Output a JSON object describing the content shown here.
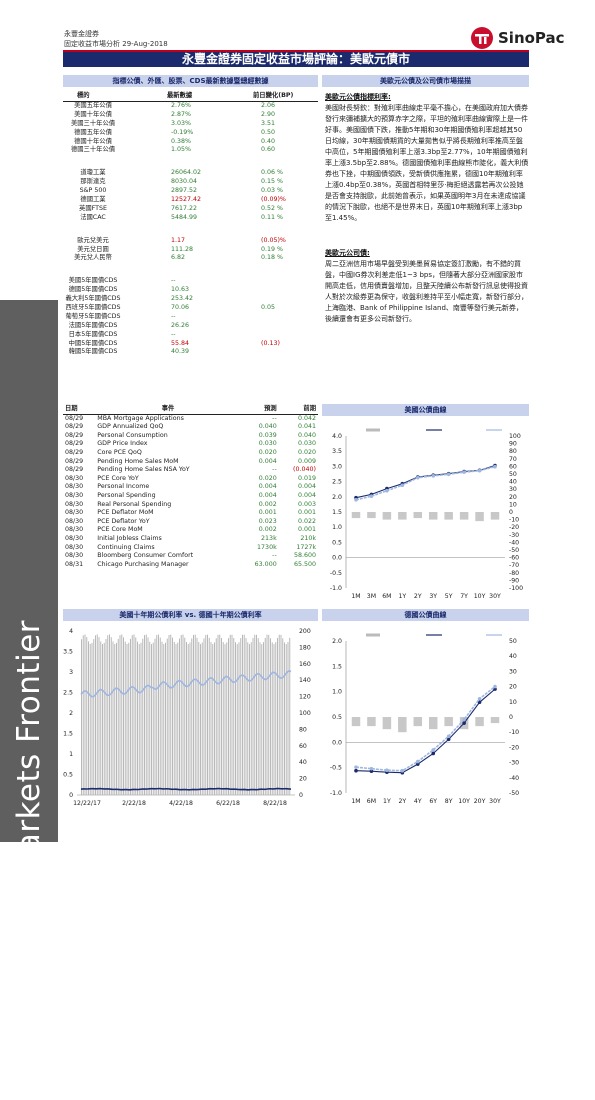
{
  "header": {
    "company": "永豐金證券",
    "subtitle": "固定收益市場分析",
    "date": "29-Aug-2018",
    "logo_text": "SinoPac",
    "title": "永豐金證券固定收益市場評論：美歐元債市"
  },
  "left_section": {
    "title": "指標公債、外匯、股票、CDS最新數據暨總經數據",
    "col_name": "標的",
    "col_latest": "最新數據",
    "col_change": "前日變化(BP)",
    "bonds": [
      {
        "name": "美國五年公債",
        "value": "2.76%",
        "change": "2.06",
        "color": "g"
      },
      {
        "name": "美國十年公債",
        "value": "2.87%",
        "change": "2.90",
        "color": "g"
      },
      {
        "name": "美國三十年公債",
        "value": "3.03%",
        "change": "3.51",
        "color": "g"
      },
      {
        "name": "德國五年公債",
        "value": "-0.19%",
        "change": "0.50",
        "color": "g"
      },
      {
        "name": "德國十年公債",
        "value": "0.38%",
        "change": "0.40",
        "color": "g"
      },
      {
        "name": "德國三十年公債",
        "value": "1.05%",
        "change": "0.60",
        "color": "g"
      }
    ],
    "stocks": [
      {
        "name": "道瓊工業",
        "value": "26064.02",
        "change": "0.06 %",
        "color": "g"
      },
      {
        "name": "那斯達克",
        "value": "8030.04",
        "change": "0.15 %",
        "color": "g"
      },
      {
        "name": "S&P 500",
        "value": "2897.52",
        "change": "0.03 %",
        "color": "g"
      },
      {
        "name": "德國工業",
        "value": "12527.42",
        "change": "(0.09)%",
        "color": "r"
      },
      {
        "name": "英國FTSE",
        "value": "7617.22",
        "change": "0.52 %",
        "color": "g"
      },
      {
        "name": "法國CAC",
        "value": "5484.99",
        "change": "0.11 %",
        "color": "g"
      }
    ],
    "fx": [
      {
        "name": "歐元兌美元",
        "value": "1.17",
        "change": "(0.05)%",
        "color": "r"
      },
      {
        "name": "美元兌日圓",
        "value": "111.28",
        "change": "0.19 %",
        "color": "g"
      },
      {
        "name": "美元兌人民幣",
        "value": "6.82",
        "change": "0.18 %",
        "color": "g"
      }
    ],
    "cds": [
      {
        "name": "美國5年國債CDS",
        "value": "--",
        "change": "",
        "color": "g"
      },
      {
        "name": "德國5年國債CDS",
        "value": "10.63",
        "change": "",
        "color": "g"
      },
      {
        "name": "義大利5年國債CDS",
        "value": "253.42",
        "change": "",
        "color": "g"
      },
      {
        "name": "西班牙5年國債CDS",
        "value": "70.06",
        "change": "0.05",
        "color": "g"
      },
      {
        "name": "葡萄牙5年國債CDS",
        "value": "--",
        "change": "",
        "color": "g"
      },
      {
        "name": "法國5年國債CDS",
        "value": "26.26",
        "change": "",
        "color": "g"
      },
      {
        "name": "日本5年國債CDS",
        "value": "--",
        "change": "",
        "color": "g"
      },
      {
        "name": "中國5年國債CDS",
        "value": "55.84",
        "change": "(0.13)",
        "color": "r"
      },
      {
        "name": "韓國5年國債CDS",
        "value": "40.39",
        "change": "",
        "color": "g"
      }
    ]
  },
  "right_section": {
    "title": "美歐元公債及公司債市場描描",
    "us_heading": "美歐元公債指標利率:",
    "us_text": "美國財長努欽：對殖利率曲線走平毫不擔心，在美國政府加大債券發行來彌補擴大的預算赤字之際，平坦的殖利率曲線實際上是一件好事。美國國債下跌，推動5年期和30年期國債殖利率超越其50日均線，30年期國債期貨的大量拋售似乎將長期殖利率推高至盤中高位，5年期國債殖利率上漲3.3bp至2.77%，10年期國債殖利率上漲3.5bp至2.88%。德國國債殖利率曲線熊市陡化，義大利債券也下挫，中期國債領跌，受新債供應拖累，德國10年期殖利率上漲0.4bp至0.38%，英國首相特里莎·梅拒絕透露若再次公投她是否會支持脫歐，此前她曾表示，如果英國明年3月在未達成協議的情況下脫歐，也絕不是世界末日，英國10年期殖利率上漲3bp至1.45%。",
    "corp_heading": "美歐元公司債:",
    "corp_text": "周二亞洲信用市場早盤受到美墨貿易協定簽訂激勵，有不錯的買盤，中國IG券次利差走低1~3 bps，但隨著大部分亞洲國家股市開高走低，信用債賣盤增加，且整天陸續公布新發行訊息使得投資人對於次級券更為保守，收盤利差持平至小幅走寬，新發行部分，上海臨港、Bank of Philippine Island、南豐等發行美元新券，後續還會有更多公司新發行。"
  },
  "calendar": {
    "col_date": "日期",
    "col_event": "事件",
    "col_forecast": "預測",
    "col_previous": "前期",
    "rows": [
      {
        "date": "08/29",
        "event": "MBA Mortgage Applications",
        "forecast": "--",
        "previous": "0.042"
      },
      {
        "date": "08/29",
        "event": "GDP Annualized QoQ",
        "forecast": "0.040",
        "previous": "0.041"
      },
      {
        "date": "08/29",
        "event": "Personal Consumption",
        "forecast": "0.039",
        "previous": "0.040"
      },
      {
        "date": "08/29",
        "event": "GDP Price Index",
        "forecast": "0.030",
        "previous": "0.030"
      },
      {
        "date": "08/29",
        "event": "Core PCE QoQ",
        "forecast": "0.020",
        "previous": "0.020"
      },
      {
        "date": "08/29",
        "event": "Pending Home Sales MoM",
        "forecast": "0.004",
        "previous": "0.009"
      },
      {
        "date": "08/29",
        "event": "Pending Home Sales NSA YoY",
        "forecast": "--",
        "previous": "(0.040)"
      },
      {
        "date": "08/30",
        "event": "PCE Core YoY",
        "forecast": "0.020",
        "previous": "0.019"
      },
      {
        "date": "08/30",
        "event": "Personal Income",
        "forecast": "0.004",
        "previous": "0.004"
      },
      {
        "date": "08/30",
        "event": "Personal Spending",
        "forecast": "0.004",
        "previous": "0.004"
      },
      {
        "date": "08/30",
        "event": "Real Personal Spending",
        "forecast": "0.002",
        "previous": "0.003"
      },
      {
        "date": "08/30",
        "event": "PCE Deflator MoM",
        "forecast": "0.001",
        "previous": "0.001"
      },
      {
        "date": "08/30",
        "event": "PCE Deflator YoY",
        "forecast": "0.023",
        "previous": "0.022"
      },
      {
        "date": "08/30",
        "event": "PCE Core MoM",
        "forecast": "0.002",
        "previous": "0.001"
      },
      {
        "date": "08/30",
        "event": "Initial Jobless Claims",
        "forecast": "213k",
        "previous": "210k"
      },
      {
        "date": "08/30",
        "event": "Continuing Claims",
        "forecast": "1730k",
        "previous": "1727k"
      },
      {
        "date": "08/30",
        "event": "Bloomberg Consumer Comfort",
        "forecast": "--",
        "previous": "58.600"
      },
      {
        "date": "08/31",
        "event": "Chicago Purchasing Manager",
        "forecast": "63.000",
        "previous": "65.500"
      }
    ]
  },
  "sidebar_text": "Fixed Income Markets Frontier",
  "chart_data": [
    {
      "type": "line",
      "title": "美國公債曲線",
      "categories": [
        "1M",
        "3M",
        "6M",
        "1Y",
        "2Y",
        "3Y",
        "5Y",
        "7Y",
        "10Y",
        "30Y"
      ],
      "series": [
        {
          "name": "",
          "values": [
            1.97,
            2.08,
            2.27,
            2.43,
            2.65,
            2.71,
            2.76,
            2.83,
            2.87,
            3.03
          ],
          "color": "#1a2a6c"
        },
        {
          "name": "",
          "values": [
            1.9,
            2.02,
            2.2,
            2.38,
            2.63,
            2.69,
            2.74,
            2.81,
            2.86,
            2.99
          ],
          "color": "#9fb7e0"
        }
      ],
      "bars": [
        -8,
        -8,
        -10,
        -10,
        -8,
        -10,
        -10,
        -10,
        -12,
        -10
      ],
      "ylim": [
        -1.0,
        4.0
      ],
      "y2lim": [
        -100,
        100
      ],
      "yticks": [
        "4.0",
        "3.5",
        "3.0",
        "2.5",
        "2.0",
        "1.5",
        "1.0",
        "0.5",
        "0.0",
        "-0.5",
        "-1.0"
      ],
      "y2ticks": [
        "100",
        "90",
        "80",
        "70",
        "60",
        "50",
        "40",
        "30",
        "20",
        "10",
        "0",
        "-10",
        "-20",
        "-30",
        "-40",
        "-50",
        "-60",
        "-70",
        "-80",
        "-90",
        "-100"
      ]
    },
    {
      "type": "line",
      "title": "美國十年期公債利率 vs. 德國十年期公債利率",
      "xlabels": [
        "12/22/17",
        "2/22/18",
        "4/22/18",
        "6/22/18",
        "8/22/18"
      ],
      "yticks": [
        "4",
        "3.5",
        "3",
        "2.5",
        "2",
        "1.5",
        "1",
        "0.5",
        "0"
      ],
      "y2ticks": [
        "200",
        "180",
        "160",
        "140",
        "120",
        "100",
        "80",
        "60",
        "40",
        "20",
        "0"
      ],
      "ylim": [
        0,
        4
      ],
      "y2lim": [
        0,
        200
      ]
    },
    {
      "type": "line",
      "title": "德國公債曲線",
      "categories": [
        "1M",
        "6M",
        "1Y",
        "2Y",
        "4Y",
        "6Y",
        "8Y",
        "10Y",
        "20Y",
        "30Y"
      ],
      "series": [
        {
          "name": "",
          "values": [
            -0.56,
            -0.57,
            -0.59,
            -0.6,
            -0.43,
            -0.22,
            0.06,
            0.38,
            0.79,
            1.05
          ],
          "color": "#1a2a6c"
        },
        {
          "name": "",
          "values": [
            -0.49,
            -0.52,
            -0.55,
            -0.56,
            -0.38,
            -0.15,
            0.12,
            0.45,
            0.86,
            1.1
          ],
          "color": "#9fb7e0"
        }
      ],
      "bars": [
        -6,
        -6,
        -8,
        -10,
        -6,
        -8,
        -6,
        -8,
        -6,
        -4
      ],
      "ylim": [
        -1.0,
        2.0
      ],
      "y2lim": [
        -50,
        50
      ],
      "yticks": [
        "2.0",
        "1.5",
        "1.0",
        "0.5",
        "0.0",
        "-0.5",
        "-1.0"
      ],
      "y2ticks": [
        "50",
        "40",
        "30",
        "20",
        "10",
        "0",
        "-10",
        "-20",
        "-30",
        "-40",
        "-50"
      ]
    }
  ]
}
